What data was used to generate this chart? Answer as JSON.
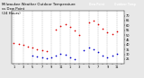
{
  "title": "Milwaukee Weather Outdoor Temperature",
  "title2": "vs Dew Point",
  "title3": "(24 Hours)",
  "title_fontsize": 2.8,
  "background_color": "#e8e8e8",
  "plot_bg_color": "#ffffff",
  "temp_color": "#dd0000",
  "dew_color": "#0000cc",
  "legend_temp_label": "Outdoor Temp",
  "legend_dew_label": "Dew Point",
  "ylim": [
    20,
    75
  ],
  "yticks": [
    25,
    30,
    35,
    40,
    45,
    50,
    55,
    60,
    65,
    70
  ],
  "grid_color": "#aaaaaa",
  "dot_size": 1.5,
  "temp_x": [
    0,
    1,
    2,
    3,
    4,
    5,
    6,
    7,
    9,
    10,
    11,
    12,
    13,
    14,
    16,
    17,
    18,
    19,
    20,
    21,
    22
  ],
  "temp_y": [
    42,
    41,
    40,
    38,
    37,
    35,
    34,
    33,
    56,
    59,
    61,
    58,
    55,
    50,
    63,
    65,
    61,
    57,
    53,
    51,
    54
  ],
  "dew_x": [
    4,
    5,
    6,
    7,
    8,
    9,
    10,
    11,
    12,
    13,
    15,
    16,
    17,
    18,
    19,
    20,
    21,
    22
  ],
  "dew_y": [
    29,
    28,
    27,
    26,
    27,
    29,
    31,
    30,
    27,
    25,
    34,
    37,
    35,
    32,
    29,
    27,
    29,
    31
  ],
  "x_tick_positions": [
    0,
    1,
    2,
    3,
    4,
    5,
    6,
    7,
    8,
    9,
    10,
    11,
    12,
    13,
    14,
    15,
    16,
    17,
    18,
    19,
    20,
    21,
    22,
    23
  ],
  "x_tick_labels": [
    "1",
    "",
    "3",
    "",
    "5",
    "",
    "7",
    "",
    "9",
    "",
    "11",
    "",
    "1",
    "",
    "3",
    "",
    "5",
    "",
    "7",
    "",
    "9",
    "",
    "11",
    ""
  ],
  "grid_x_positions": [
    0,
    2,
    4,
    6,
    8,
    10,
    12,
    14,
    16,
    18,
    20,
    22
  ]
}
